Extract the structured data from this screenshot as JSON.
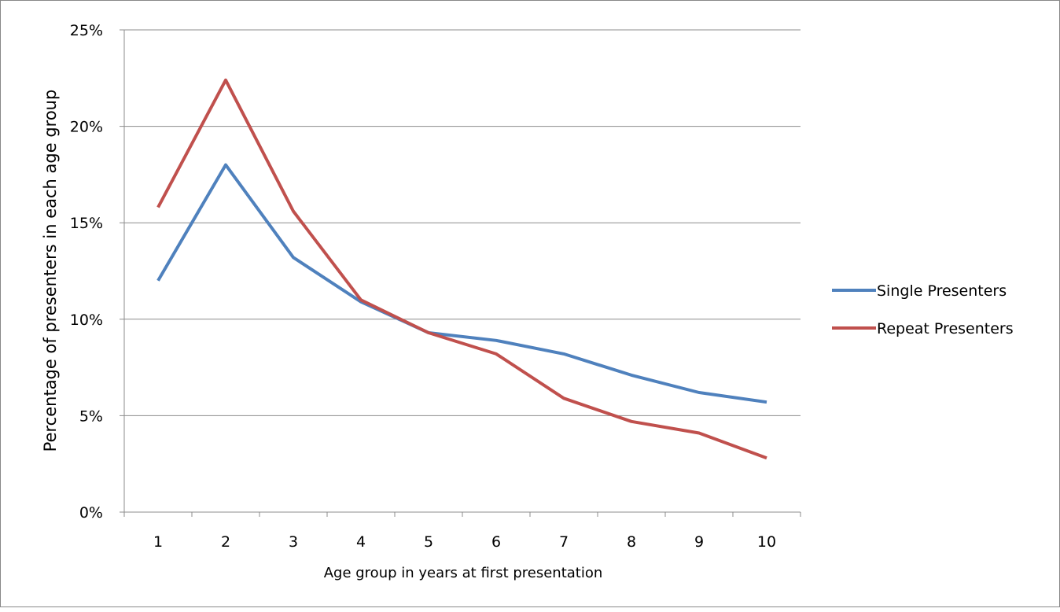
{
  "chart_data": {
    "type": "line",
    "title": "",
    "xlabel": "Age group in years at first presentation",
    "ylabel": "Percentage of presenters in each age group",
    "categories": [
      "1",
      "2",
      "3",
      "4",
      "5",
      "6",
      "7",
      "8",
      "9",
      "10"
    ],
    "ylim": [
      0,
      25
    ],
    "yticks": [
      0,
      5,
      10,
      15,
      20,
      25
    ],
    "ytick_labels": [
      "0%",
      "5%",
      "10%",
      "15%",
      "20%",
      "25%"
    ],
    "grid": "horizontal",
    "legend_position": "right",
    "series": [
      {
        "name": "Single Presenters",
        "color": "#4f81bd",
        "values": [
          12.0,
          18.0,
          13.2,
          10.9,
          9.3,
          8.9,
          8.2,
          7.1,
          6.2,
          5.7
        ]
      },
      {
        "name": "Repeat Presenters",
        "color": "#c0504d",
        "values": [
          15.8,
          22.4,
          15.6,
          11.0,
          9.3,
          8.2,
          5.9,
          4.7,
          4.1,
          2.8
        ]
      }
    ]
  }
}
